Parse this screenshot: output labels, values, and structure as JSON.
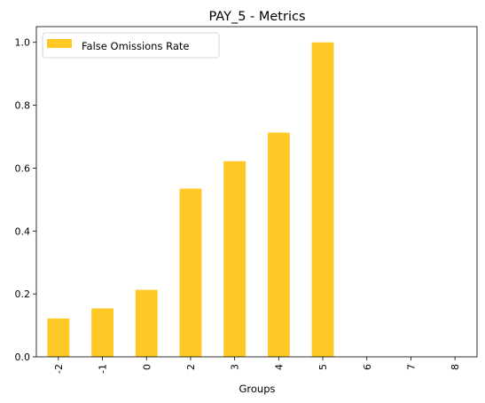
{
  "chart_data": {
    "type": "bar",
    "title": "PAY_5 - Metrics",
    "xlabel": "Groups",
    "ylabel": "",
    "categories": [
      "-2",
      "-1",
      "0",
      "2",
      "3",
      "4",
      "5",
      "6",
      "7",
      "8"
    ],
    "series": [
      {
        "name": "False Omissions Rate",
        "values": [
          0.122,
          0.154,
          0.213,
          0.535,
          0.622,
          0.713,
          1.0,
          0,
          0,
          0
        ],
        "color": "#ffc825"
      }
    ],
    "ylim": [
      0,
      1.05
    ],
    "yticks": [
      "0.0",
      "0.2",
      "0.4",
      "0.6",
      "0.8",
      "1.0"
    ],
    "grid": false,
    "legend_position": "top-left"
  }
}
